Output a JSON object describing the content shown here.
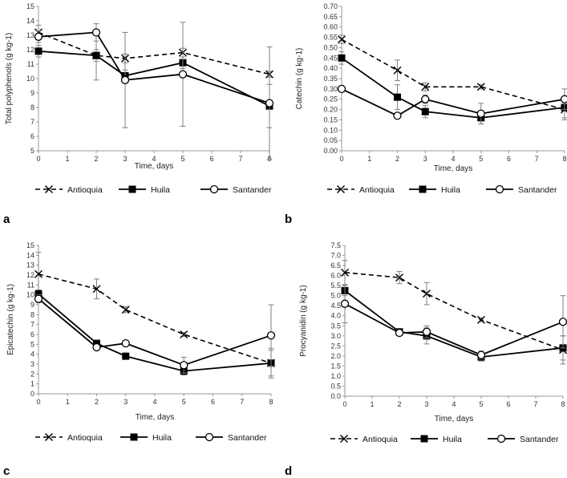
{
  "colors": {
    "axis": "#999999",
    "line": "#000000",
    "errorbar": "#7f7f7f"
  },
  "legend_labels": [
    "Antioquia",
    "Huila",
    "Santander"
  ],
  "chart_data": [
    {
      "id": "a",
      "type": "line",
      "panel_label": "a",
      "ylabel": "Total polyphenols (g kg-1)",
      "xlabel": "Time, days",
      "ylim": [
        5,
        15
      ],
      "ytick_step": 1,
      "ydecimals": 0,
      "xlim": [
        0,
        8
      ],
      "xticks": [
        0,
        1,
        2,
        3,
        4,
        5,
        6,
        7,
        8
      ],
      "x": [
        0,
        2,
        3,
        5,
        8
      ],
      "series": [
        {
          "name": "Antioquia",
          "marker": "x",
          "dash": true,
          "values": [
            13.2,
            11.6,
            11.4,
            11.8,
            10.3
          ],
          "err": [
            0.5,
            0.4,
            0.3,
            0.3,
            0.2
          ]
        },
        {
          "name": "Huila",
          "marker": "square",
          "dash": false,
          "values": [
            11.9,
            11.6,
            10.2,
            11.1,
            8.1
          ],
          "err": [
            0.4,
            1.7,
            0.4,
            0.4,
            1.5
          ]
        },
        {
          "name": "Santander",
          "marker": "circle",
          "dash": false,
          "values": [
            12.9,
            13.2,
            9.9,
            10.3,
            8.3
          ],
          "err": [
            0.4,
            0.6,
            3.3,
            3.6,
            3.9
          ]
        }
      ]
    },
    {
      "id": "b",
      "type": "line",
      "panel_label": "b",
      "ylabel": "Catechin (g kg-1)",
      "xlabel": "Time, days",
      "ylim": [
        0,
        0.7
      ],
      "ytick_step": 0.05,
      "ydecimals": 2,
      "xlim": [
        0,
        8
      ],
      "xticks": [
        0,
        1,
        2,
        3,
        4,
        5,
        6,
        7,
        8
      ],
      "x": [
        0,
        2,
        3,
        5,
        8
      ],
      "series": [
        {
          "name": "Antioquia",
          "marker": "x",
          "dash": true,
          "values": [
            0.54,
            0.39,
            0.31,
            0.31,
            0.2
          ],
          "err": [
            0.02,
            0.05,
            0.02,
            0.01,
            0.05
          ]
        },
        {
          "name": "Huila",
          "marker": "square",
          "dash": false,
          "values": [
            0.45,
            0.26,
            0.19,
            0.16,
            0.21
          ],
          "err": [
            0.03,
            0.06,
            0.03,
            0.03,
            0.05
          ]
        },
        {
          "name": "Santander",
          "marker": "circle",
          "dash": false,
          "values": [
            0.3,
            0.17,
            0.25,
            0.18,
            0.25
          ],
          "err": [
            0.01,
            0.01,
            0.02,
            0.05,
            0.05
          ]
        }
      ]
    },
    {
      "id": "c",
      "type": "line",
      "panel_label": "c",
      "ylabel": "Epicatechin (g kg-1)",
      "xlabel": "Time, days",
      "ylim": [
        0,
        15
      ],
      "ytick_step": 1,
      "ydecimals": 0,
      "xlim": [
        0,
        8
      ],
      "xticks": [
        0,
        1,
        2,
        3,
        4,
        5,
        6,
        7,
        8
      ],
      "x": [
        0,
        2,
        3,
        5,
        8
      ],
      "series": [
        {
          "name": "Antioquia",
          "marker": "x",
          "dash": true,
          "values": [
            12.1,
            10.6,
            8.5,
            6.0,
            3.1
          ],
          "err": [
            2.2,
            1.0,
            0.3,
            0.2,
            1.5
          ]
        },
        {
          "name": "Huila",
          "marker": "square",
          "dash": false,
          "values": [
            10.1,
            5.1,
            3.8,
            2.3,
            3.1
          ],
          "err": [
            0.4,
            0.3,
            0.2,
            0.4,
            1.3
          ]
        },
        {
          "name": "Santander",
          "marker": "circle",
          "dash": false,
          "values": [
            9.6,
            4.7,
            5.1,
            2.9,
            5.9
          ],
          "err": [
            0.4,
            0.2,
            0.2,
            0.8,
            3.1
          ]
        }
      ]
    },
    {
      "id": "d",
      "type": "line",
      "panel_label": "d",
      "ylabel": "Procyanidin (g kg-1)",
      "xlabel": "Time, days",
      "ylim": [
        0,
        7.5
      ],
      "ytick_step": 0.5,
      "ydecimals": 1,
      "xlim": [
        0,
        8
      ],
      "xticks": [
        0,
        1,
        2,
        3,
        4,
        5,
        6,
        7,
        8
      ],
      "x": [
        0,
        2,
        3,
        5,
        8
      ],
      "series": [
        {
          "name": "Antioquia",
          "marker": "x",
          "dash": true,
          "values": [
            6.15,
            5.9,
            5.1,
            3.8,
            2.3
          ],
          "err": [
            0.6,
            0.3,
            0.55,
            0.1,
            0.7
          ]
        },
        {
          "name": "Huila",
          "marker": "square",
          "dash": false,
          "values": [
            5.25,
            3.2,
            3.0,
            1.95,
            2.4
          ],
          "err": [
            0.25,
            0.15,
            0.4,
            0.2,
            0.6
          ]
        },
        {
          "name": "Santander",
          "marker": "circle",
          "dash": false,
          "values": [
            4.6,
            3.15,
            3.2,
            2.05,
            3.7
          ],
          "err": [
            0.95,
            0.1,
            0.3,
            0.2,
            1.3
          ]
        }
      ]
    }
  ]
}
